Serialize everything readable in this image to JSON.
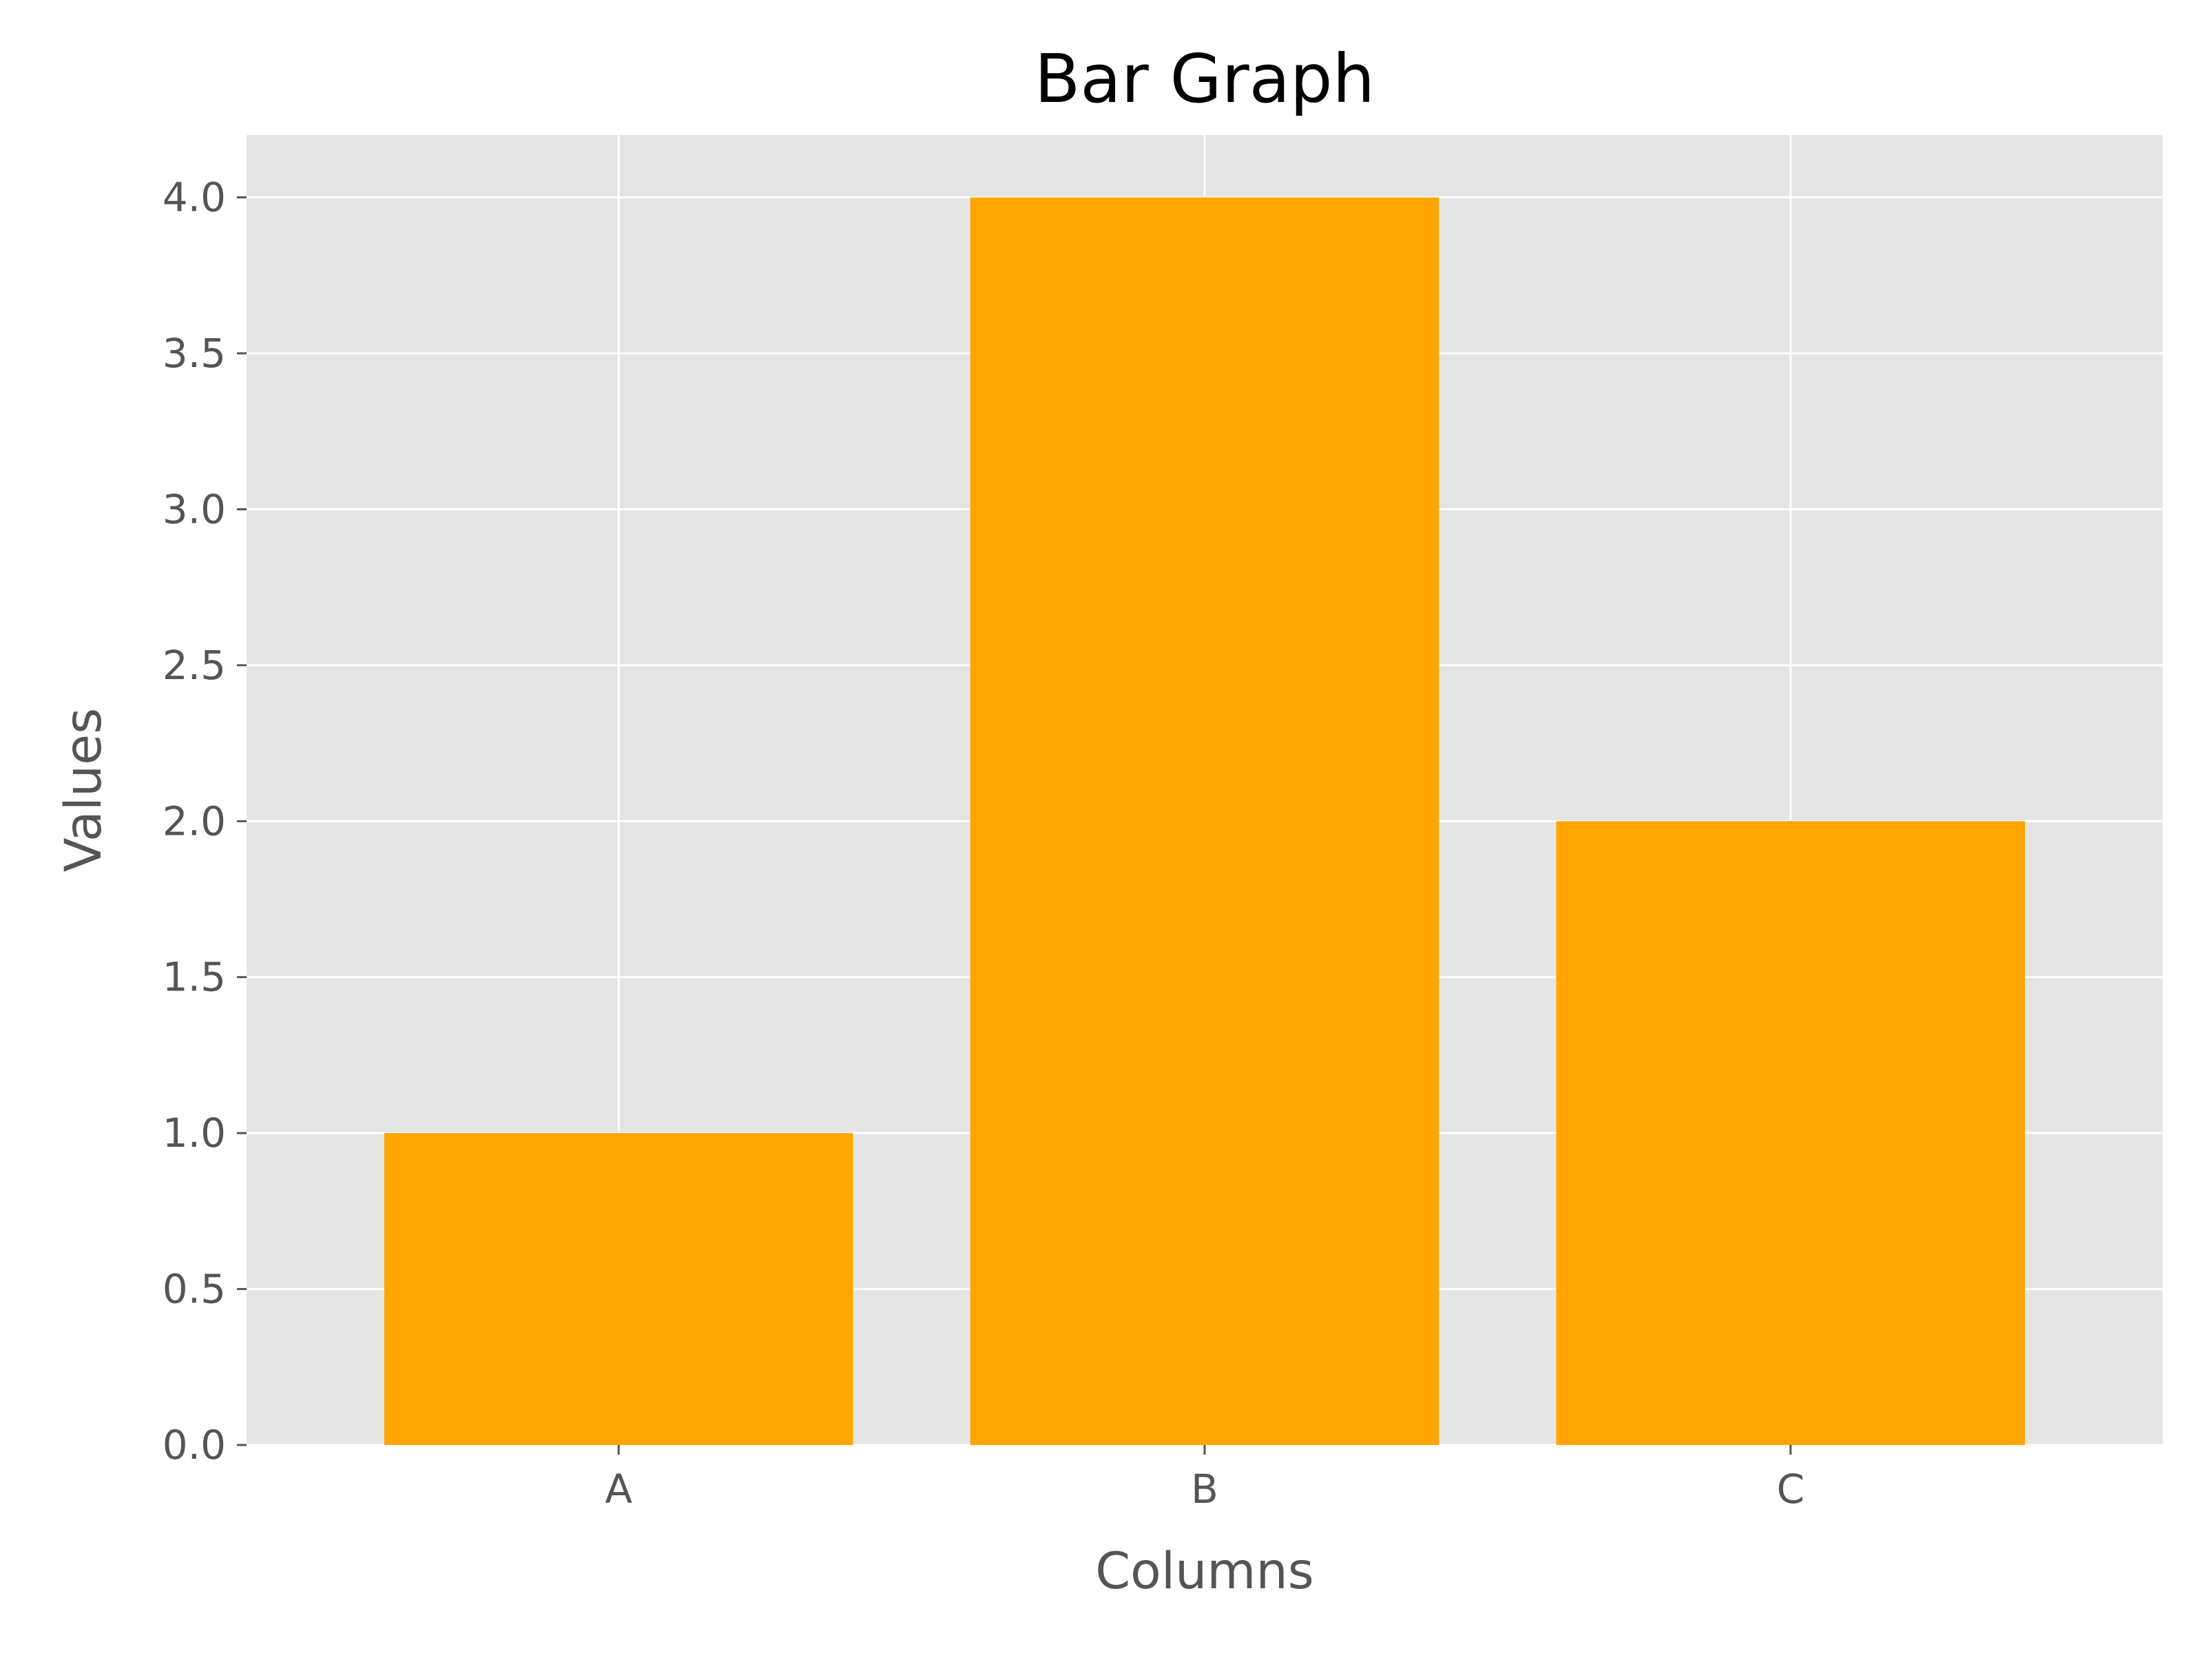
{
  "chart_data": {
    "type": "bar",
    "title": "Bar Graph",
    "xlabel": "Columns",
    "ylabel": "Values",
    "categories": [
      "A",
      "B",
      "C"
    ],
    "values": [
      1,
      4,
      2
    ],
    "ylim": [
      0,
      4.2
    ],
    "yticks": [
      "0.0",
      "0.5",
      "1.0",
      "1.5",
      "2.0",
      "2.5",
      "3.0",
      "3.5",
      "4.0"
    ],
    "grid": true,
    "legend": "none",
    "colors": {
      "bar": "#FFA500",
      "plot_background": "#E5E5E5",
      "grid": "#FFFFFF",
      "text": "#555555",
      "title": "#000000"
    }
  }
}
